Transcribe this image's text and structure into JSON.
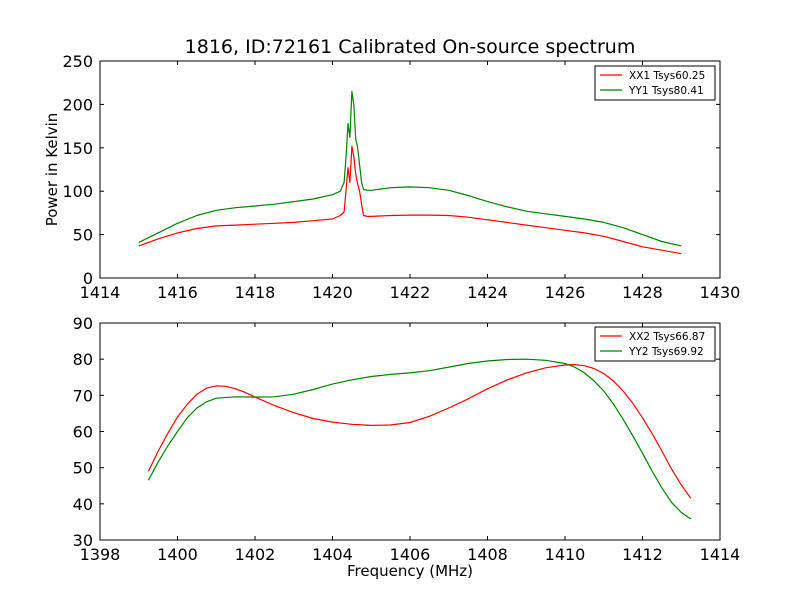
{
  "title": "1816, ID:72161 Calibrated On-source spectrum",
  "chart_data": [
    {
      "type": "line",
      "ylabel": "Power in Kelvin",
      "xlabel": "",
      "xlim": [
        1414,
        1430
      ],
      "ylim": [
        0,
        250
      ],
      "xticks": [
        "1414",
        "1416",
        "1418",
        "1420",
        "1422",
        "1424",
        "1426",
        "1428",
        "1430"
      ],
      "yticks": [
        "0",
        "50",
        "100",
        "150",
        "200",
        "250"
      ],
      "legend_position": "top-right",
      "series": [
        {
          "name": "XX1 Tsys60.25",
          "color": "#ff0000",
          "x": [
            1415.0,
            1415.5,
            1416.0,
            1416.5,
            1417.0,
            1417.5,
            1418.0,
            1418.5,
            1419.0,
            1419.5,
            1420.0,
            1420.2,
            1420.3,
            1420.4,
            1420.45,
            1420.5,
            1420.55,
            1420.6,
            1420.65,
            1420.7,
            1420.75,
            1420.8,
            1420.9,
            1421.0,
            1421.5,
            1422.0,
            1422.5,
            1423.0,
            1423.5,
            1424.0,
            1424.5,
            1425.0,
            1425.5,
            1426.0,
            1426.5,
            1427.0,
            1427.5,
            1428.0,
            1428.5,
            1429.0
          ],
          "y": [
            37,
            45,
            52,
            57,
            60,
            61,
            62,
            63,
            64,
            66,
            68,
            72,
            76,
            127,
            110,
            152,
            140,
            120,
            108,
            100,
            85,
            72,
            71,
            71,
            72,
            72.5,
            72.5,
            72,
            70,
            67,
            64,
            61,
            58,
            55,
            52,
            48,
            42,
            36,
            32,
            28
          ]
        },
        {
          "name": "YY1 Tsys80.41",
          "color": "#008000",
          "x": [
            1415.0,
            1415.5,
            1416.0,
            1416.5,
            1417.0,
            1417.5,
            1418.0,
            1418.5,
            1419.0,
            1419.5,
            1420.0,
            1420.2,
            1420.3,
            1420.35,
            1420.4,
            1420.45,
            1420.5,
            1420.55,
            1420.6,
            1420.65,
            1420.7,
            1420.75,
            1420.8,
            1420.9,
            1421.0,
            1421.5,
            1422.0,
            1422.5,
            1423.0,
            1423.5,
            1424.0,
            1424.5,
            1425.0,
            1425.5,
            1426.0,
            1426.5,
            1427.0,
            1427.5,
            1428.0,
            1428.5,
            1429.0
          ],
          "y": [
            41,
            52,
            63,
            72,
            78,
            81,
            83,
            85,
            88,
            91,
            96,
            100,
            110,
            140,
            178,
            162,
            215,
            200,
            160,
            150,
            130,
            110,
            102,
            101,
            101,
            104,
            105,
            104,
            101,
            95,
            88,
            82,
            77,
            74,
            71,
            68,
            64,
            58,
            50,
            42,
            37
          ]
        }
      ]
    },
    {
      "type": "line",
      "ylabel": "",
      "xlabel": "Frequency (MHz)",
      "xlim": [
        1398,
        1414
      ],
      "ylim": [
        30,
        90
      ],
      "xticks": [
        "1398",
        "1400",
        "1402",
        "1404",
        "1406",
        "1408",
        "1410",
        "1412",
        "1414"
      ],
      "yticks": [
        "30",
        "40",
        "50",
        "60",
        "70",
        "80",
        "90"
      ],
      "legend_position": "top-right",
      "series": [
        {
          "name": "XX2 Tsys66.87",
          "color": "#ff0000",
          "x": [
            1399.25,
            1399.5,
            1399.75,
            1400.0,
            1400.25,
            1400.5,
            1400.75,
            1401.0,
            1401.25,
            1401.5,
            1401.75,
            1402.0,
            1402.5,
            1403.0,
            1403.5,
            1404.0,
            1404.5,
            1405.0,
            1405.5,
            1406.0,
            1406.5,
            1407.0,
            1407.5,
            1408.0,
            1408.5,
            1409.0,
            1409.5,
            1410.0,
            1410.25,
            1410.5,
            1410.75,
            1411.0,
            1411.25,
            1411.5,
            1411.75,
            1412.0,
            1412.25,
            1412.5,
            1412.75,
            1413.0,
            1413.25
          ],
          "y": [
            49,
            54.5,
            59.5,
            64,
            67.5,
            70.3,
            72,
            72.6,
            72.5,
            71.8,
            70.8,
            69.5,
            67.2,
            65.2,
            63.6,
            62.6,
            62,
            61.7,
            61.8,
            62.5,
            64.2,
            66.5,
            69,
            71.8,
            74.2,
            76.2,
            77.6,
            78.4,
            78.5,
            78.2,
            77.4,
            76,
            74,
            71.2,
            67.8,
            63.8,
            59.4,
            54.6,
            49.6,
            45.2,
            41.5
          ]
        },
        {
          "name": "YY2 Tsys69.92",
          "color": "#008000",
          "x": [
            1399.25,
            1399.5,
            1399.75,
            1400.0,
            1400.25,
            1400.5,
            1400.75,
            1401.0,
            1401.5,
            1402.0,
            1402.5,
            1403.0,
            1403.5,
            1404.0,
            1404.5,
            1405.0,
            1405.5,
            1406.0,
            1406.5,
            1407.0,
            1407.5,
            1408.0,
            1408.5,
            1409.0,
            1409.5,
            1410.0,
            1410.25,
            1410.5,
            1410.75,
            1411.0,
            1411.25,
            1411.5,
            1411.75,
            1412.0,
            1412.25,
            1412.5,
            1412.75,
            1413.0,
            1413.25
          ],
          "y": [
            46.5,
            51.5,
            56,
            60,
            63.8,
            66.5,
            68.2,
            69.2,
            69.6,
            69.5,
            69.6,
            70.3,
            71.6,
            73.1,
            74.3,
            75.2,
            75.8,
            76.2,
            76.8,
            77.8,
            78.8,
            79.5,
            79.9,
            80,
            79.7,
            78.8,
            77.8,
            76.2,
            74,
            71.2,
            67.6,
            63.4,
            58.8,
            54,
            49,
            44.4,
            40.4,
            37.6,
            35.8
          ]
        }
      ]
    }
  ]
}
